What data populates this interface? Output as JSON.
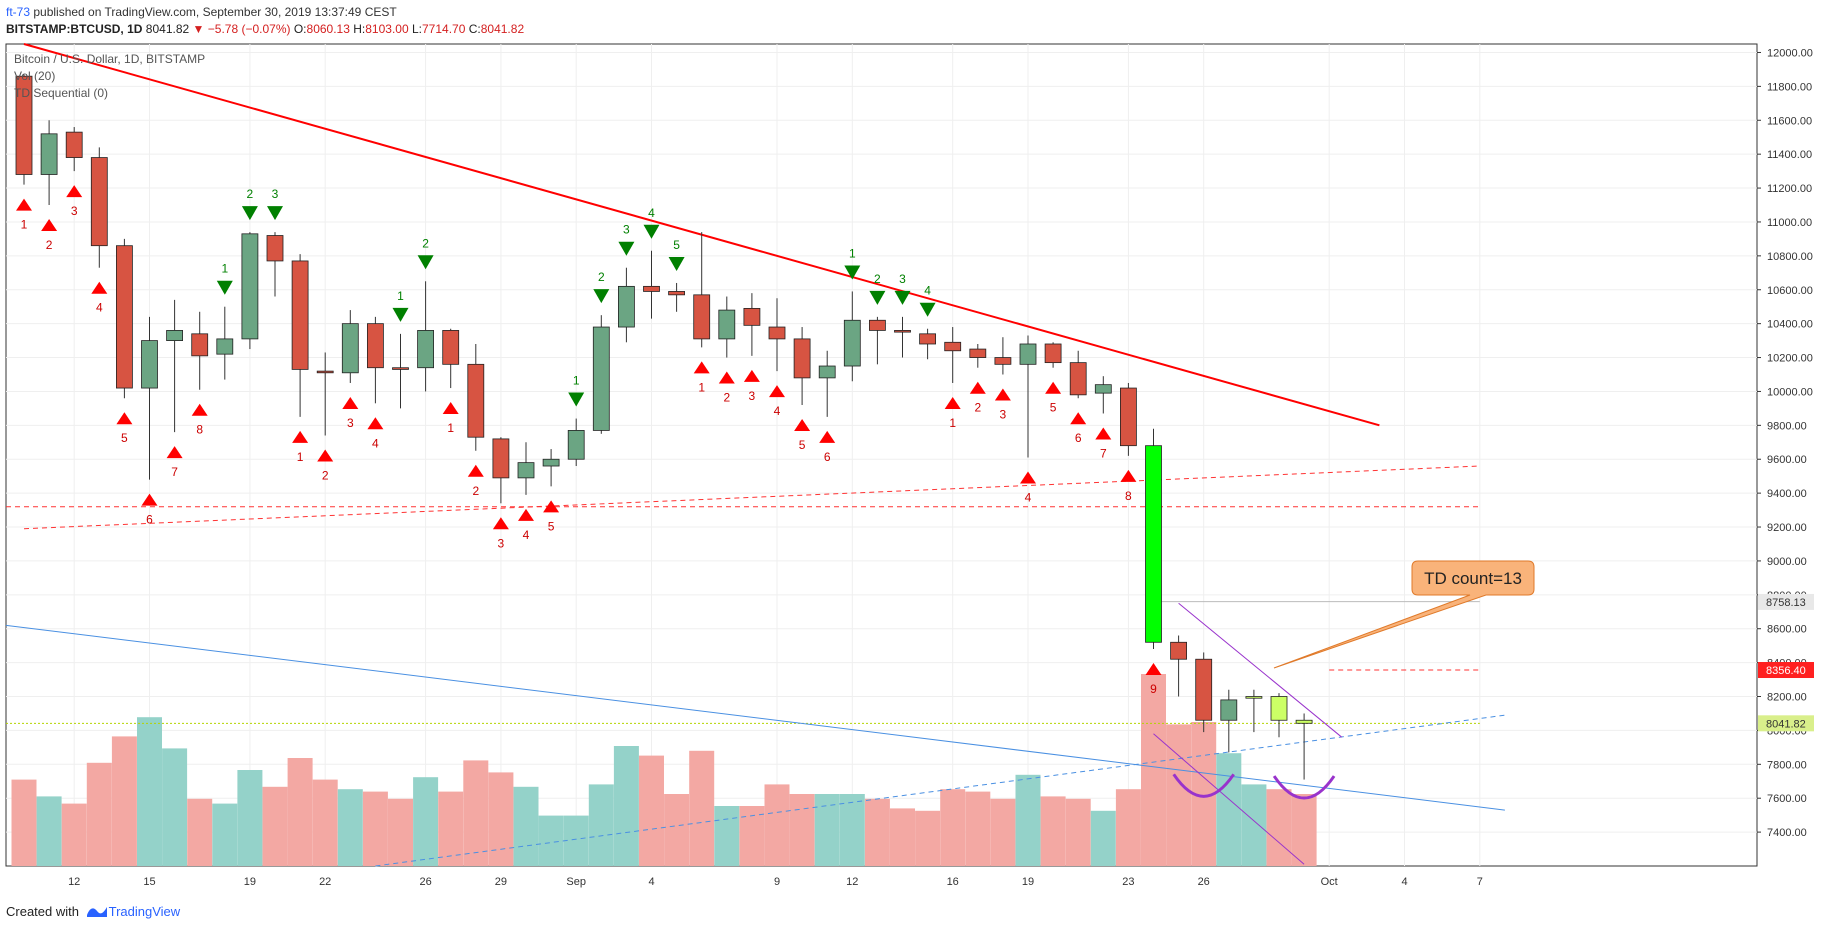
{
  "header": {
    "user": "ft-73",
    "published": " published on TradingView.com, September 30, 2019 13:37:49 CEST",
    "symbol": "BITSTAMP:BTCUSD, 1D",
    "last": "8041.82",
    "change": "−5.78 (−0.07%)",
    "o_label": "O:",
    "o": "8060.13",
    "h_label": "H:",
    "h": "8103.00",
    "l_label": "L:",
    "l": "7714.70",
    "c_label": "C:",
    "c": "8041.82"
  },
  "legend": {
    "title": "Bitcoin / U.S. Dollar, 1D, BITSTAMP",
    "vol": "Vol (20)",
    "td": "TD Sequential (0)"
  },
  "footer": {
    "prefix": "Created with",
    "brand": "TradingView"
  },
  "colors": {
    "up": "#6ba583",
    "down": "#d75442",
    "vol_up": "#94d2c9",
    "vol_down": "#f3a8a3",
    "td_up": "#008000",
    "td_down": "#ff0000",
    "trend": "#ff0000",
    "blue": "#4a90e2",
    "purple": "#9933cc",
    "lime": "#00ff00",
    "yellow": "#ccff66"
  },
  "chart_data": {
    "type": "candlestick",
    "y_range": [
      7200,
      12050
    ],
    "y_ticks": [
      "12000.00",
      "11800.00",
      "11600.00",
      "11400.00",
      "11200.00",
      "11000.00",
      "10800.00",
      "10600.00",
      "10400.00",
      "10200.00",
      "10000.00",
      "9800.00",
      "9600.00",
      "9400.00",
      "9200.00",
      "9000.00",
      "8800.00",
      "8600.00",
      "8400.00",
      "8200.00",
      "8000.00",
      "7800.00",
      "7600.00",
      "7400.00"
    ],
    "x_ticks": [
      {
        "label": "12",
        "index": 2
      },
      {
        "label": "15",
        "index": 5
      },
      {
        "label": "19",
        "index": 9
      },
      {
        "label": "22",
        "index": 12
      },
      {
        "label": "26",
        "index": 16
      },
      {
        "label": "29",
        "index": 19
      },
      {
        "label": "Sep",
        "index": 22
      },
      {
        "label": "4",
        "index": 25
      },
      {
        "label": "9",
        "index": 30
      },
      {
        "label": "12",
        "index": 33
      },
      {
        "label": "16",
        "index": 37
      },
      {
        "label": "19",
        "index": 40
      },
      {
        "label": "23",
        "index": 44
      },
      {
        "label": "26",
        "index": 47
      },
      {
        "label": "Oct",
        "index": 52
      },
      {
        "label": "4",
        "index": 55
      },
      {
        "label": "7",
        "index": 58
      }
    ],
    "price_labels": [
      {
        "text": "8758.13",
        "value": 8758.13,
        "bg": "#e8e8e8",
        "color": "#333333"
      },
      {
        "text": "8356.40",
        "value": 8356.4,
        "bg": "#ff2020",
        "color": "#ffffff"
      },
      {
        "text": "8041.82",
        "value": 8041.82,
        "bg": "#d9ef8b",
        "color": "#333333"
      }
    ],
    "candles": [
      [
        11860,
        11870,
        11220,
        11280
      ],
      [
        11280,
        11600,
        11100,
        11520
      ],
      [
        11530,
        11560,
        11300,
        11380
      ],
      [
        11380,
        11440,
        10730,
        10860
      ],
      [
        10860,
        10900,
        9960,
        10020
      ],
      [
        10020,
        10440,
        9480,
        10300
      ],
      [
        10300,
        10540,
        9760,
        10360
      ],
      [
        10340,
        10470,
        10010,
        10210
      ],
      [
        10220,
        10500,
        10070,
        10310
      ],
      [
        10310,
        10940,
        10250,
        10930
      ],
      [
        10920,
        10940,
        10560,
        10770
      ],
      [
        10770,
        10810,
        9850,
        10130
      ],
      [
        10120,
        10230,
        9740,
        10110
      ],
      [
        10110,
        10480,
        10050,
        10400
      ],
      [
        10400,
        10440,
        9930,
        10140
      ],
      [
        10140,
        10340,
        9900,
        10130
      ],
      [
        10140,
        10650,
        10000,
        10360
      ],
      [
        10360,
        10370,
        10020,
        10160
      ],
      [
        10160,
        10280,
        9650,
        9730
      ],
      [
        9720,
        9730,
        9340,
        9490
      ],
      [
        9490,
        9700,
        9390,
        9580
      ],
      [
        9560,
        9660,
        9440,
        9600
      ],
      [
        9600,
        9840,
        9560,
        9770
      ],
      [
        9770,
        10450,
        9750,
        10380
      ],
      [
        10380,
        10730,
        10290,
        10620
      ],
      [
        10620,
        10830,
        10430,
        10590
      ],
      [
        10590,
        10640,
        10470,
        10570
      ],
      [
        10570,
        10940,
        10260,
        10310
      ],
      [
        10310,
        10560,
        10200,
        10480
      ],
      [
        10490,
        10580,
        10210,
        10390
      ],
      [
        10380,
        10550,
        10120,
        10310
      ],
      [
        10310,
        10380,
        9920,
        10080
      ],
      [
        10080,
        10240,
        9850,
        10150
      ],
      [
        10150,
        10590,
        10060,
        10420
      ],
      [
        10420,
        10440,
        10160,
        10360
      ],
      [
        10360,
        10440,
        10200,
        10350
      ],
      [
        10340,
        10370,
        10190,
        10280
      ],
      [
        10290,
        10380,
        10050,
        10240
      ],
      [
        10250,
        10280,
        10140,
        10200
      ],
      [
        10200,
        10320,
        10100,
        10160
      ],
      [
        10160,
        10330,
        9610,
        10280
      ],
      [
        10280,
        10290,
        10140,
        10170
      ],
      [
        10170,
        10240,
        9960,
        9980
      ],
      [
        9990,
        10090,
        9870,
        10040
      ],
      [
        10020,
        10050,
        9620,
        9680
      ],
      [
        9680,
        9780,
        8480,
        8520
      ],
      [
        8520,
        8560,
        8200,
        8420
      ],
      [
        8420,
        8460,
        7990,
        8060
      ],
      [
        8060,
        8240,
        7870,
        8180
      ],
      [
        8190,
        8240,
        7990,
        8200
      ],
      [
        8200,
        8220,
        7960,
        8060
      ],
      [
        8060,
        8100,
        7710,
        8042
      ]
    ],
    "candle_overrides": [
      {
        "index": 45,
        "color": "#00ff00"
      },
      {
        "index": 49,
        "color": "#ccff66"
      },
      {
        "index": 50,
        "color": "#ccff66"
      },
      {
        "index": 51,
        "color": "#ccff66"
      }
    ],
    "volume": [
      0.36,
      0.29,
      0.26,
      0.43,
      0.54,
      0.62,
      0.49,
      0.28,
      0.26,
      0.4,
      0.33,
      0.45,
      0.36,
      0.32,
      0.31,
      0.28,
      0.37,
      0.31,
      0.44,
      0.39,
      0.33,
      0.21,
      0.21,
      0.34,
      0.5,
      0.46,
      0.3,
      0.48,
      0.25,
      0.25,
      0.34,
      0.3,
      0.3,
      0.3,
      0.28,
      0.24,
      0.23,
      0.32,
      0.31,
      0.28,
      0.38,
      0.29,
      0.28,
      0.23,
      0.32,
      0.8,
      0.59,
      0.6,
      0.47,
      0.34,
      0.32,
      0.3
    ],
    "td_signals": [
      {
        "index": 0,
        "dir": "down",
        "count": "1"
      },
      {
        "index": 1,
        "dir": "down",
        "count": "2"
      },
      {
        "index": 2,
        "dir": "down",
        "count": "3"
      },
      {
        "index": 3,
        "dir": "down",
        "count": "4"
      },
      {
        "index": 4,
        "dir": "down",
        "count": "5"
      },
      {
        "index": 5,
        "dir": "down",
        "count": "6"
      },
      {
        "index": 6,
        "dir": "down",
        "count": "7"
      },
      {
        "index": 7,
        "dir": "down",
        "count": "8"
      },
      {
        "index": 8,
        "dir": "up",
        "count": "1"
      },
      {
        "index": 9,
        "dir": "up",
        "count": "2"
      },
      {
        "index": 10,
        "dir": "up",
        "count": "3"
      },
      {
        "index": 11,
        "dir": "down",
        "count": "1"
      },
      {
        "index": 12,
        "dir": "down",
        "count": "2"
      },
      {
        "index": 13,
        "dir": "down",
        "count": "3"
      },
      {
        "index": 14,
        "dir": "down",
        "count": "4"
      },
      {
        "index": 15,
        "dir": "up",
        "count": "1"
      },
      {
        "index": 16,
        "dir": "up",
        "count": "2"
      },
      {
        "index": 17,
        "dir": "down",
        "count": "1"
      },
      {
        "index": 18,
        "dir": "down",
        "count": "2"
      },
      {
        "index": 19,
        "dir": "down",
        "count": "3"
      },
      {
        "index": 20,
        "dir": "down",
        "count": "4"
      },
      {
        "index": 21,
        "dir": "down",
        "count": "5"
      },
      {
        "index": 22,
        "dir": "up",
        "count": "1"
      },
      {
        "index": 23,
        "dir": "up",
        "count": "2"
      },
      {
        "index": 24,
        "dir": "up",
        "count": "3"
      },
      {
        "index": 25,
        "dir": "up",
        "count": "4"
      },
      {
        "index": 26,
        "dir": "up",
        "count": "5"
      },
      {
        "index": 27,
        "dir": "down",
        "count": "1"
      },
      {
        "index": 28,
        "dir": "down",
        "count": "2"
      },
      {
        "index": 29,
        "dir": "down",
        "count": "3"
      },
      {
        "index": 30,
        "dir": "down",
        "count": "4"
      },
      {
        "index": 31,
        "dir": "down",
        "count": "5"
      },
      {
        "index": 32,
        "dir": "down",
        "count": "6"
      },
      {
        "index": 33,
        "dir": "up",
        "count": "1"
      },
      {
        "index": 34,
        "dir": "up",
        "count": "2"
      },
      {
        "index": 35,
        "dir": "up",
        "count": "3"
      },
      {
        "index": 36,
        "dir": "up",
        "count": "4"
      },
      {
        "index": 37,
        "dir": "down",
        "count": "1"
      },
      {
        "index": 38,
        "dir": "down",
        "count": "2"
      },
      {
        "index": 39,
        "dir": "down",
        "count": "3"
      },
      {
        "index": 40,
        "dir": "down",
        "count": "4"
      },
      {
        "index": 41,
        "dir": "down",
        "count": "5"
      },
      {
        "index": 42,
        "dir": "down",
        "count": "6"
      },
      {
        "index": 43,
        "dir": "down",
        "count": "7"
      },
      {
        "index": 44,
        "dir": "down",
        "count": "8"
      },
      {
        "index": 45,
        "dir": "down",
        "count": "9"
      }
    ],
    "trendlines": [
      {
        "i1": 0,
        "v1": 12050,
        "i2": 54,
        "v2": 9800,
        "color": "#ff0000",
        "width": 2,
        "dash": ""
      },
      {
        "i1": 0,
        "v1": 9190,
        "i2": 58,
        "v2": 9560,
        "color": "#ff3333",
        "width": 1,
        "dash": "5,4"
      },
      {
        "i1": -1,
        "v1": 9320,
        "i2": 58,
        "v2": 9320,
        "color": "#ff3333",
        "width": 1,
        "dash": "5,4"
      },
      {
        "i1": 45,
        "v1": 8760,
        "i2": 58,
        "v2": 8760,
        "color": "#bbbbbb",
        "width": 1,
        "dash": ""
      },
      {
        "i1": 52,
        "v1": 8356.4,
        "i2": 58,
        "v2": 8356.4,
        "color": "#ff3333",
        "width": 1,
        "dash": "5,4"
      },
      {
        "i1": -1,
        "v1": 8041.82,
        "i2": 58,
        "v2": 8041.82,
        "color": "#b5d400",
        "width": 1,
        "dash": "2,2"
      },
      {
        "i1": -1,
        "v1": 8620,
        "i2": 59,
        "v2": 7530,
        "color": "#4a90e2",
        "width": 1,
        "dash": ""
      },
      {
        "i1": 14,
        "v1": 7200,
        "i2": 59,
        "v2": 8090,
        "color": "#4a90e2",
        "width": 1,
        "dash": "5,4"
      },
      {
        "i1": 46,
        "v1": 8750,
        "i2": 52.5,
        "v2": 7960,
        "color": "#9933cc",
        "width": 1,
        "dash": ""
      },
      {
        "i1": 45,
        "v1": 7980,
        "i2": 51,
        "v2": 7210,
        "color": "#9933cc",
        "width": 1,
        "dash": ""
      }
    ],
    "arcs": [
      {
        "index": 47,
        "value": 7670
      },
      {
        "index": 51,
        "value": 7660
      }
    ],
    "callout": {
      "text": "TD count=13",
      "index": 49.5,
      "value": 8356.4
    }
  }
}
